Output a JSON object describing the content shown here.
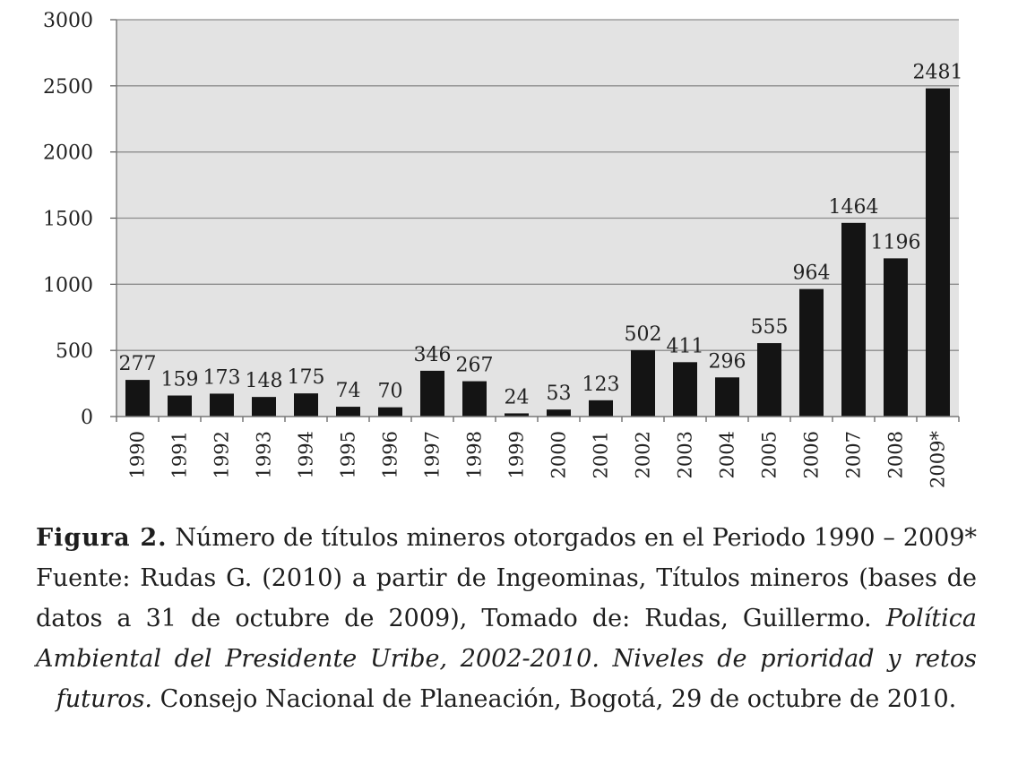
{
  "chart_data": {
    "type": "bar",
    "categories": [
      "1990",
      "1991",
      "1992",
      "1993",
      "1994",
      "1995",
      "1996",
      "1997",
      "1998",
      "1999",
      "2000",
      "2001",
      "2002",
      "2003",
      "2004",
      "2005",
      "2006",
      "2007",
      "2008",
      "2009*"
    ],
    "values": [
      277,
      159,
      173,
      148,
      175,
      74,
      70,
      346,
      267,
      24,
      53,
      123,
      502,
      411,
      296,
      555,
      964,
      1464,
      1196,
      2481
    ],
    "data_labels": [
      "277",
      "159",
      "173",
      "148",
      "175",
      "74",
      "70",
      "346",
      "267",
      "24",
      "53",
      "123",
      "502",
      "411",
      "296",
      "555",
      "964",
      "1464",
      "1196",
      "2481"
    ],
    "y_ticks": [
      "0",
      "500",
      "1000",
      "1500",
      "2000",
      "2500",
      "3000"
    ],
    "ylim": [
      0,
      3000
    ],
    "grid": true,
    "bar_color": "#141414",
    "plot_background": "#e3e3e3",
    "title": "",
    "xlabel": "",
    "ylabel": ""
  },
  "caption": {
    "label": "Figura 2.",
    "text1": " Número de títulos mineros otorgados en el Periodo 1990 – 2009* Fuente: Rudas G. (2010) a partir de Ingeominas, Títulos mineros (bases de datos a 31 de octubre de 2009), Tomado de: Rudas, Guillermo. ",
    "italic": "Política Ambiental del Presidente Uribe, 2002-2010. Niveles de prioridad y retos futuros.",
    "text2": " Consejo Nacional de Planeación, Bogotá, 29 de octubre de 2010."
  }
}
